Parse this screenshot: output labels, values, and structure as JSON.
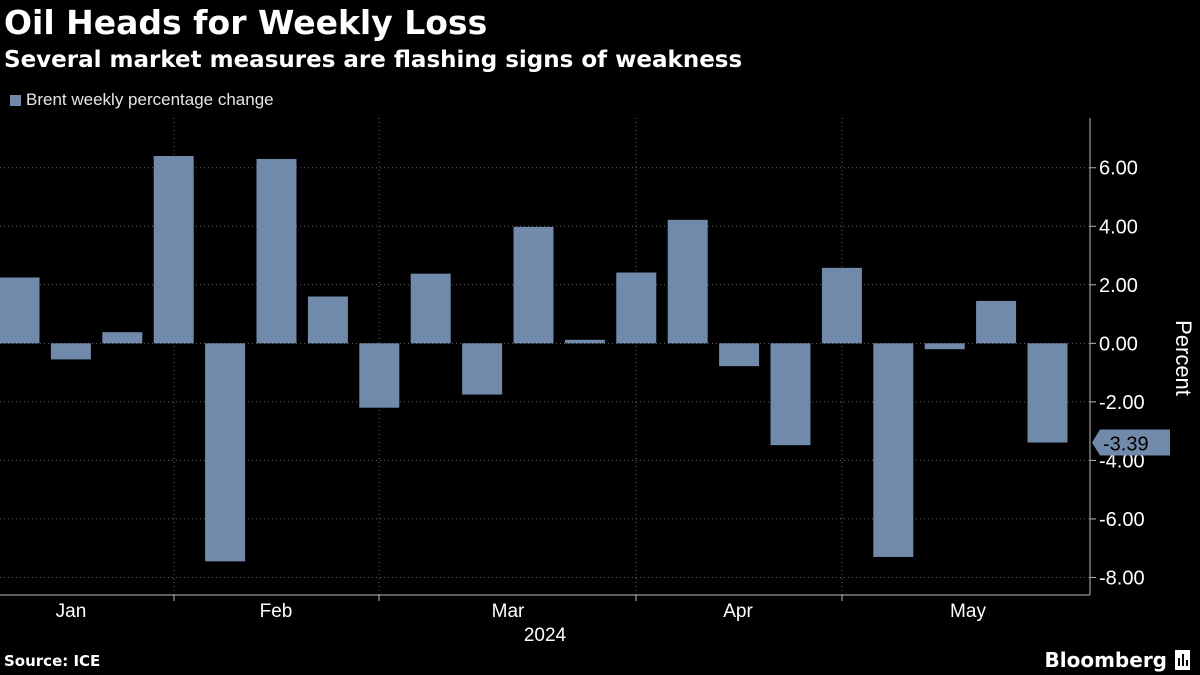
{
  "header": {
    "title": "Oil Heads for Weekly Loss",
    "subtitle": "Several market measures are flashing signs of weakness"
  },
  "footer": {
    "source": "Source: ICE",
    "brand": "Bloomberg"
  },
  "colors": {
    "background": "#000000",
    "bar": "#7189ab",
    "text": "#ffffff",
    "grid": "#666666"
  },
  "chart_data": {
    "type": "bar",
    "legend": [
      "Brent weekly percentage change"
    ],
    "legend_position": "top-left",
    "ylabel": "Percent",
    "xlabel": "2024",
    "x_ticks": [
      "Jan",
      "Feb",
      "Mar",
      "Apr",
      "May"
    ],
    "y_ticks": [
      "6.00",
      "4.00",
      "2.00",
      "0.00",
      "-2.00",
      "-4.00",
      "-6.00",
      "-8.00"
    ],
    "y_tick_values": [
      6,
      4,
      2,
      0,
      -2,
      -4,
      -6,
      -8
    ],
    "ylim": [
      -8.6,
      7.7
    ],
    "y_axis_position": "right",
    "grid": true,
    "series": [
      {
        "name": "Brent weekly percentage change",
        "values": [
          2.25,
          -0.55,
          0.38,
          6.4,
          -7.45,
          6.3,
          1.6,
          -2.2,
          2.38,
          -1.75,
          3.98,
          0.12,
          2.42,
          4.22,
          -0.78,
          -3.48,
          2.58,
          -7.3,
          -0.2,
          1.45,
          -3.39
        ]
      }
    ],
    "last_value_label": "-3.39"
  }
}
